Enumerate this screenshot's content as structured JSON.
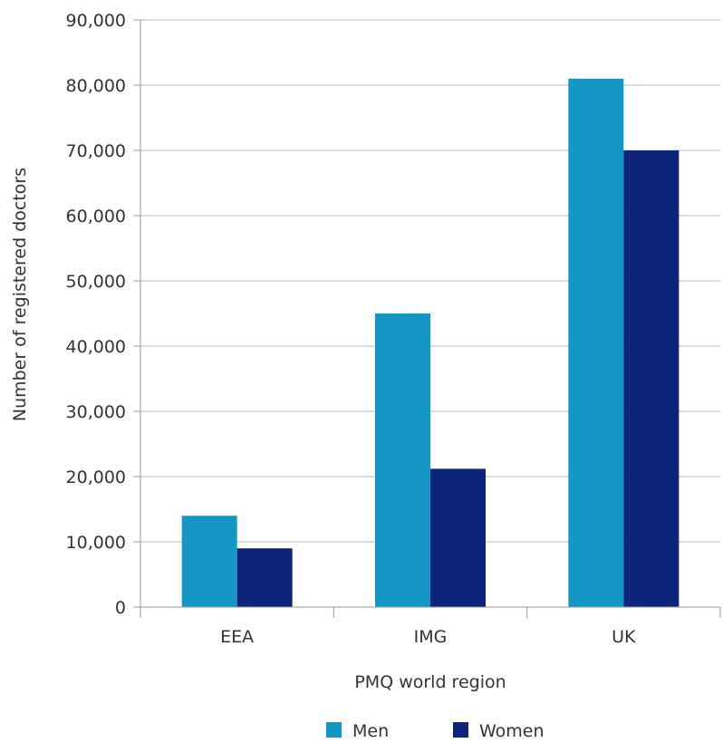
{
  "chart_data": {
    "type": "bar",
    "categories": [
      "EEA",
      "IMG",
      "UK"
    ],
    "series": [
      {
        "name": "Men",
        "values": [
          14000,
          45000,
          81000
        ],
        "color": "#1597c5"
      },
      {
        "name": "Women",
        "values": [
          9000,
          21200,
          70000
        ],
        "color": "#0c2479"
      }
    ],
    "xlabel": "PMQ world region",
    "ylabel": "Number of registered doctors",
    "ylim": [
      0,
      90000
    ],
    "yticks": [
      0,
      10000,
      20000,
      30000,
      40000,
      50000,
      60000,
      70000,
      80000,
      90000
    ],
    "ytick_labels": [
      "0",
      "10,000",
      "20,000",
      "30,000",
      "40,000",
      "50,000",
      "60,000",
      "70,000",
      "80,000",
      "90,000"
    ],
    "grid": true,
    "legend_position": "bottom"
  }
}
